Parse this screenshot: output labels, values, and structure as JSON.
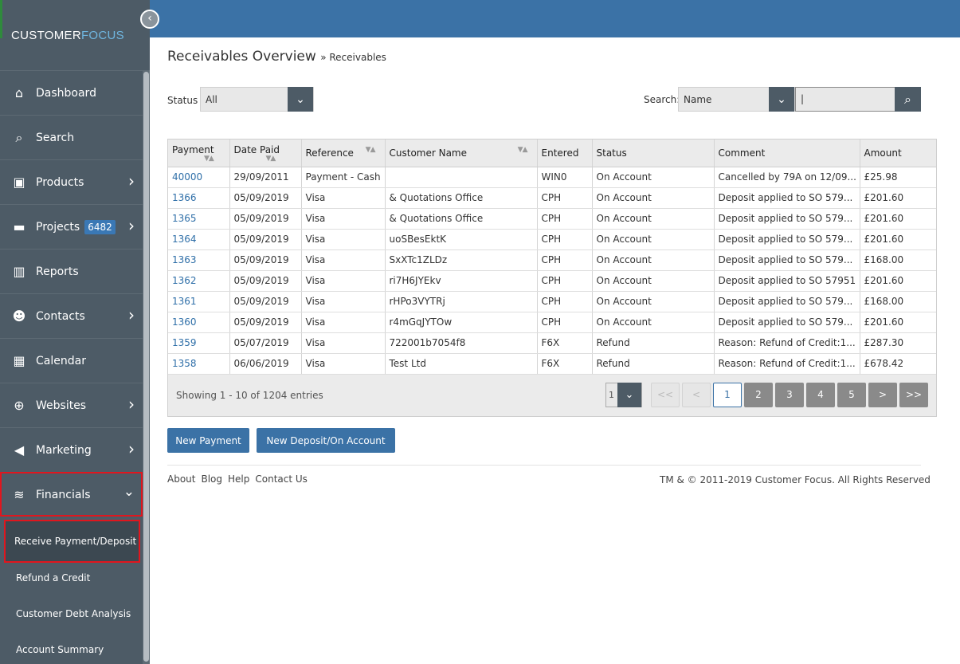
{
  "brand": {
    "part1": "CUSTOMER",
    "part2": "FOCUS"
  },
  "nav": [
    {
      "label": "Dashboard",
      "icon": "home-icon",
      "glyph": "⌂"
    },
    {
      "label": "Search",
      "icon": "search-icon",
      "glyph": "⌕"
    },
    {
      "label": "Products",
      "icon": "box-icon",
      "glyph": "▣",
      "chevron": true
    },
    {
      "label": "Projects",
      "icon": "folder-icon",
      "glyph": "▬",
      "badge": "6482",
      "chevron": true
    },
    {
      "label": "Reports",
      "icon": "bar-chart-icon",
      "glyph": "▥"
    },
    {
      "label": "Contacts",
      "icon": "users-icon",
      "glyph": "☻",
      "chevron": true
    },
    {
      "label": "Calendar",
      "icon": "calendar-icon",
      "glyph": "▦"
    },
    {
      "label": "Websites",
      "icon": "globe-icon",
      "glyph": "⊕",
      "chevron": true
    },
    {
      "label": "Marketing",
      "icon": "megaphone-icon",
      "glyph": "◀",
      "chevron": true
    },
    {
      "label": "Financials",
      "icon": "coins-icon",
      "glyph": "≋",
      "expanded": true
    }
  ],
  "financials_sub": [
    "Receive Payment/Deposit",
    "Refund a Credit",
    "Customer Debt Analysis",
    "Account Summary"
  ],
  "page": {
    "title": "Receivables Overview",
    "breadcrumb_sep": "»",
    "breadcrumb": "Receivables"
  },
  "filters": {
    "status_label": "Status",
    "status_value": "All",
    "search_label": "Search:",
    "search_field": "Name",
    "search_value": "|"
  },
  "table": {
    "columns": [
      "Payment",
      "Date Paid",
      "Reference",
      "Customer Name",
      "Entered",
      "Status",
      "Comment",
      "Amount"
    ],
    "rows": [
      [
        "40000",
        "29/09/2011",
        "Payment - Cash",
        "",
        "WIN0",
        "On Account",
        "Cancelled by 79A on 12/09...",
        "£25.98"
      ],
      [
        "1366",
        "05/09/2019",
        "Visa",
        "& Quotations Office",
        "CPH",
        "On Account",
        "Deposit applied to SO 579...",
        "£201.60"
      ],
      [
        "1365",
        "05/09/2019",
        "Visa",
        "& Quotations Office",
        "CPH",
        "On Account",
        "Deposit applied to SO 579...",
        "£201.60"
      ],
      [
        "1364",
        "05/09/2019",
        "Visa",
        "uoSBesEktK",
        "CPH",
        "On Account",
        "Deposit applied to SO 579...",
        "£201.60"
      ],
      [
        "1363",
        "05/09/2019",
        "Visa",
        "SxXTc1ZLDz",
        "CPH",
        "On Account",
        "Deposit applied to SO 579...",
        "£168.00"
      ],
      [
        "1362",
        "05/09/2019",
        "Visa",
        "ri7H6JYEkv",
        "CPH",
        "On Account",
        "Deposit applied to SO 57951",
        "£201.60"
      ],
      [
        "1361",
        "05/09/2019",
        "Visa",
        "rHPo3VYTRj",
        "CPH",
        "On Account",
        "Deposit applied to SO 579...",
        "£168.00"
      ],
      [
        "1360",
        "05/09/2019",
        "Visa",
        "r4mGqJYTOw",
        "CPH",
        "On Account",
        "Deposit applied to SO 579...",
        "£201.60"
      ],
      [
        "1359",
        "05/07/2019",
        "Visa",
        "722001b7054f8",
        "F6X",
        "Refund",
        "Reason: Refund of Credit:1...",
        "£287.30"
      ],
      [
        "1358",
        "06/06/2019",
        "Visa",
        "Test Ltd",
        "F6X",
        "Refund",
        "Reason: Refund of Credit:1...",
        "£678.42"
      ]
    ],
    "showing": "Showing 1 - 10 of 1204 entries",
    "page_select": "1",
    "pages": [
      "1",
      "2",
      "3",
      "4",
      "5"
    ],
    "first_label": "<<",
    "prev_label": "<",
    "next_label": ">",
    "last_label": ">>"
  },
  "buttons": {
    "new_payment": "New Payment",
    "new_deposit": "New Deposit/On Account"
  },
  "footer": {
    "links": [
      "About",
      "Blog",
      "Help",
      "Contact Us"
    ],
    "copyright": "TM & © 2011-2019 Customer Focus. All Rights Reserved"
  }
}
